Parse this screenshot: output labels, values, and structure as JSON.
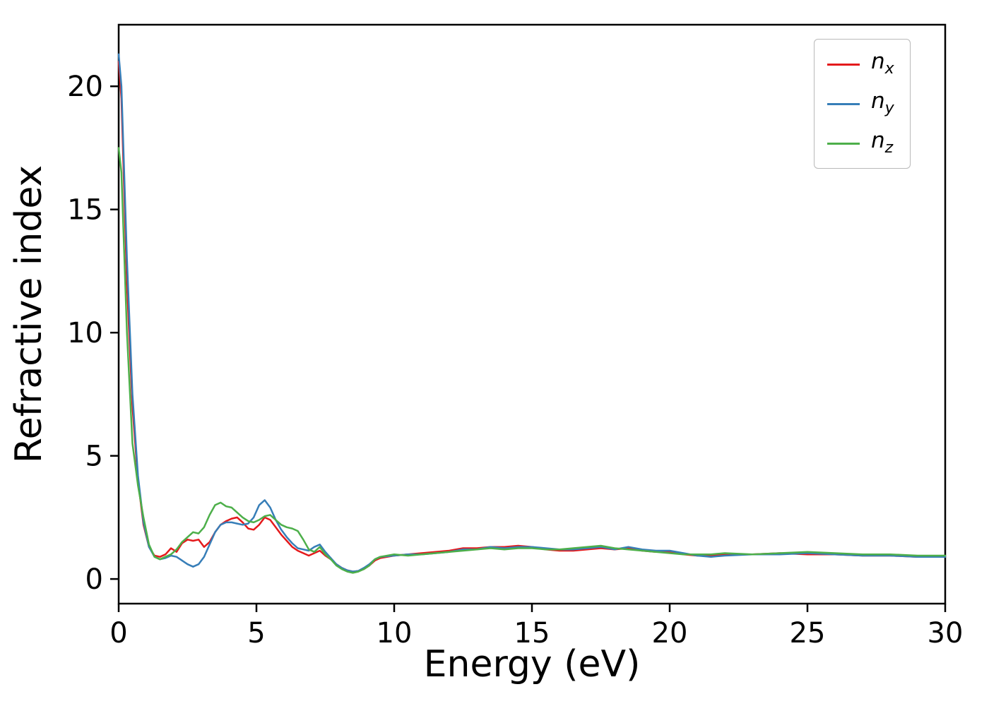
{
  "chart_data": {
    "type": "line",
    "title": "",
    "xlabel": "Energy (eV)",
    "ylabel": "Refractive index",
    "xlim": [
      0,
      30
    ],
    "ylim": [
      -1,
      22.5
    ],
    "x_ticks": [
      0,
      5,
      10,
      15,
      20,
      25,
      30
    ],
    "y_ticks": [
      0,
      5,
      10,
      15,
      20
    ],
    "grid": false,
    "legend_position": "upper right",
    "x": [
      0,
      0.1,
      0.3,
      0.5,
      0.7,
      0.9,
      1.1,
      1.3,
      1.5,
      1.7,
      1.9,
      2.1,
      2.3,
      2.5,
      2.7,
      2.9,
      3.1,
      3.3,
      3.5,
      3.7,
      3.9,
      4.1,
      4.3,
      4.5,
      4.7,
      4.9,
      5.1,
      5.3,
      5.5,
      5.7,
      5.9,
      6.1,
      6.3,
      6.5,
      6.7,
      6.9,
      7.1,
      7.3,
      7.5,
      7.7,
      7.9,
      8.1,
      8.3,
      8.5,
      8.7,
      8.9,
      9.1,
      9.3,
      9.5,
      10,
      10.5,
      11,
      11.5,
      12,
      12.5,
      13,
      13.5,
      14,
      14.5,
      15,
      15.5,
      16,
      16.5,
      17,
      17.5,
      18,
      18.5,
      19,
      19.5,
      20,
      20.5,
      21,
      21.5,
      22,
      23,
      24,
      25,
      26,
      27,
      28,
      29,
      30
    ],
    "series": [
      {
        "name": "n_x",
        "label_base": "n",
        "label_sub": "x",
        "color": "#e41a1c",
        "values": [
          21.0,
          19.5,
          12.0,
          7.0,
          4.0,
          2.2,
          1.3,
          0.95,
          0.9,
          1.0,
          1.25,
          1.1,
          1.45,
          1.6,
          1.55,
          1.6,
          1.3,
          1.5,
          1.9,
          2.2,
          2.35,
          2.45,
          2.5,
          2.3,
          2.05,
          2.0,
          2.2,
          2.5,
          2.4,
          2.1,
          1.8,
          1.55,
          1.3,
          1.15,
          1.05,
          0.95,
          1.05,
          1.15,
          0.95,
          0.8,
          0.6,
          0.45,
          0.35,
          0.3,
          0.32,
          0.4,
          0.55,
          0.75,
          0.85,
          0.95,
          1.0,
          1.05,
          1.1,
          1.15,
          1.25,
          1.25,
          1.3,
          1.3,
          1.35,
          1.3,
          1.2,
          1.15,
          1.15,
          1.2,
          1.25,
          1.2,
          1.25,
          1.15,
          1.1,
          1.1,
          1.0,
          0.95,
          0.95,
          1.0,
          1.0,
          1.05,
          1.0,
          1.0,
          0.95,
          0.95,
          0.9,
          0.9
        ]
      },
      {
        "name": "n_y",
        "label_base": "n",
        "label_sub": "y",
        "color": "#377eb8",
        "values": [
          21.3,
          20.0,
          13.0,
          7.5,
          4.2,
          2.3,
          1.3,
          0.9,
          0.8,
          0.85,
          0.95,
          0.9,
          0.75,
          0.6,
          0.5,
          0.6,
          0.9,
          1.4,
          1.9,
          2.2,
          2.3,
          2.3,
          2.25,
          2.2,
          2.25,
          2.5,
          3.0,
          3.2,
          2.9,
          2.4,
          2.0,
          1.7,
          1.45,
          1.25,
          1.2,
          1.15,
          1.3,
          1.4,
          1.1,
          0.85,
          0.6,
          0.45,
          0.35,
          0.3,
          0.33,
          0.45,
          0.6,
          0.8,
          0.9,
          0.95,
          1.0,
          1.0,
          1.05,
          1.1,
          1.2,
          1.2,
          1.3,
          1.25,
          1.3,
          1.3,
          1.25,
          1.2,
          1.2,
          1.25,
          1.3,
          1.2,
          1.3,
          1.2,
          1.15,
          1.15,
          1.05,
          0.95,
          0.9,
          0.95,
          1.0,
          1.0,
          1.05,
          1.0,
          0.95,
          0.95,
          0.9,
          0.9
        ]
      },
      {
        "name": "n_z",
        "label_base": "n",
        "label_sub": "z",
        "color": "#4daf4a",
        "values": [
          17.5,
          16.5,
          10.0,
          5.5,
          3.8,
          2.5,
          1.4,
          0.9,
          0.8,
          0.9,
          1.0,
          1.2,
          1.5,
          1.7,
          1.9,
          1.85,
          2.1,
          2.6,
          3.0,
          3.1,
          2.95,
          2.9,
          2.7,
          2.5,
          2.35,
          2.3,
          2.4,
          2.55,
          2.6,
          2.4,
          2.2,
          2.1,
          2.05,
          1.95,
          1.6,
          1.2,
          1.1,
          1.3,
          1.0,
          0.8,
          0.55,
          0.4,
          0.3,
          0.25,
          0.3,
          0.4,
          0.55,
          0.8,
          0.9,
          1.0,
          0.95,
          1.0,
          1.05,
          1.1,
          1.15,
          1.2,
          1.25,
          1.2,
          1.25,
          1.25,
          1.2,
          1.2,
          1.25,
          1.3,
          1.35,
          1.25,
          1.2,
          1.15,
          1.1,
          1.05,
          1.0,
          1.0,
          1.0,
          1.05,
          1.0,
          1.05,
          1.1,
          1.05,
          1.0,
          1.0,
          0.95,
          0.95
        ]
      }
    ]
  }
}
